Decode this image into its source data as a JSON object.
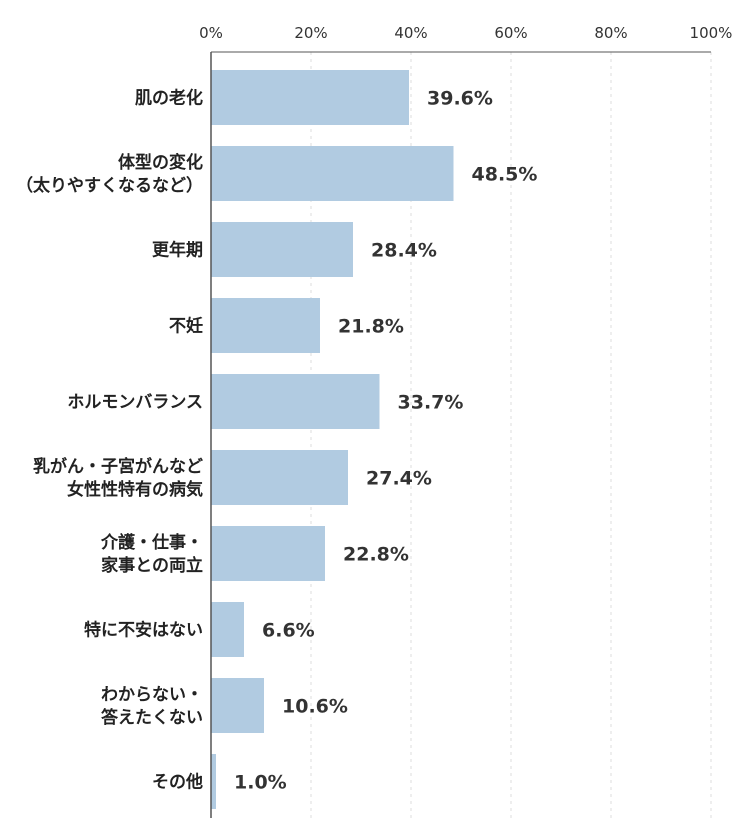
{
  "chart_data": {
    "type": "bar",
    "orientation": "horizontal",
    "categories": [
      [
        "肌の老化"
      ],
      [
        "体型の変化",
        "（太りやすくなるなど）"
      ],
      [
        "更年期"
      ],
      [
        "不妊"
      ],
      [
        "ホルモンバランス"
      ],
      [
        "乳がん・子宮がんなど",
        "女性性特有の病気"
      ],
      [
        "介護・仕事・",
        "家事との両立"
      ],
      [
        "特に不安はない"
      ],
      [
        "わからない・",
        "答えたくない"
      ],
      [
        "その他"
      ]
    ],
    "values": [
      39.6,
      48.5,
      28.4,
      21.8,
      33.7,
      27.4,
      22.8,
      6.6,
      10.6,
      1.0
    ],
    "value_labels": [
      "39.6%",
      "48.5%",
      "28.4%",
      "21.8%",
      "33.7%",
      "27.4%",
      "22.8%",
      "6.6%",
      "10.6%",
      "1.0%"
    ],
    "x_ticks": [
      0,
      20,
      40,
      60,
      80,
      100
    ],
    "x_tick_labels": [
      "0%",
      "20%",
      "40%",
      "60%",
      "80%",
      "100%"
    ],
    "xlim": [
      0,
      100
    ],
    "grid": true,
    "legend": "none",
    "colors": {
      "bar": "#b1cbe1",
      "axis": "#555555",
      "grid": "#dddddd"
    }
  }
}
